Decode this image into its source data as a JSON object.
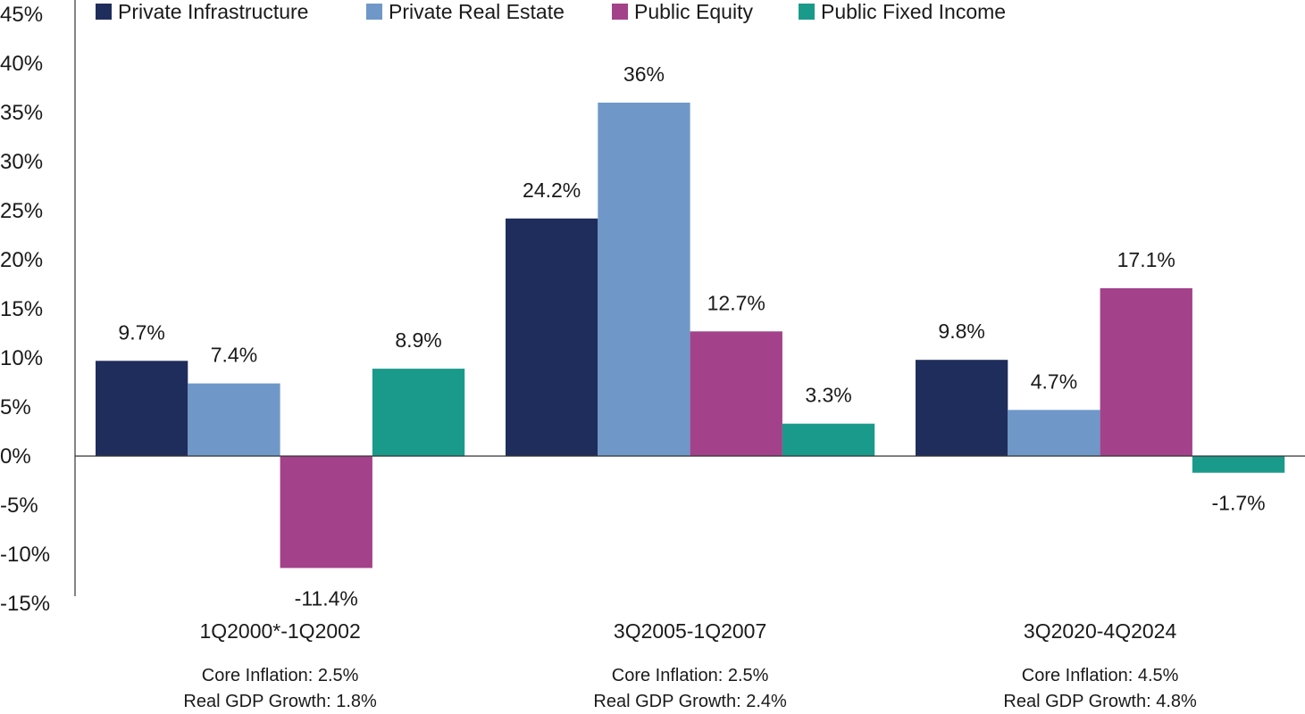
{
  "chart_data": {
    "type": "bar",
    "categories": [
      "1Q2000*-1Q2002",
      "3Q2005-1Q2007",
      "3Q2020-4Q2024"
    ],
    "category_notes": [
      [
        "Core Inflation: 2.5%",
        "Real GDP Growth: 1.8%"
      ],
      [
        "Core Inflation: 2.5%",
        "Real GDP Growth: 2.4%"
      ],
      [
        "Core Inflation: 4.5%",
        "Real GDP Growth: 4.8%"
      ]
    ],
    "series": [
      {
        "name": "Private Infrastructure",
        "color": "#1f2d5c",
        "values": [
          9.7,
          24.2,
          9.8
        ],
        "labels": [
          "9.7%",
          "24.2%",
          "9.8%"
        ]
      },
      {
        "name": "Private Real Estate",
        "color": "#6f98c8",
        "values": [
          7.4,
          36,
          4.7
        ],
        "labels": [
          "7.4%",
          "36%",
          "4.7%"
        ]
      },
      {
        "name": "Public Equity",
        "color": "#a3418a",
        "values": [
          -11.4,
          12.7,
          17.1
        ],
        "labels": [
          "-11.4%",
          "12.7%",
          "17.1%"
        ]
      },
      {
        "name": "Public Fixed Income",
        "color": "#1a9a8a",
        "values": [
          8.9,
          3.3,
          -1.7
        ],
        "labels": [
          "8.9%",
          "3.3%",
          "-1.7%"
        ]
      }
    ],
    "y_ticks": [
      "45%",
      "40%",
      "35%",
      "30%",
      "25%",
      "20%",
      "15%",
      "10%",
      "5%",
      "0%",
      "-5%",
      "-10%",
      "-15%"
    ],
    "ylim": [
      -15,
      45
    ],
    "grid": false,
    "legend_position": "top",
    "title": "",
    "xlabel": "",
    "ylabel": ""
  }
}
